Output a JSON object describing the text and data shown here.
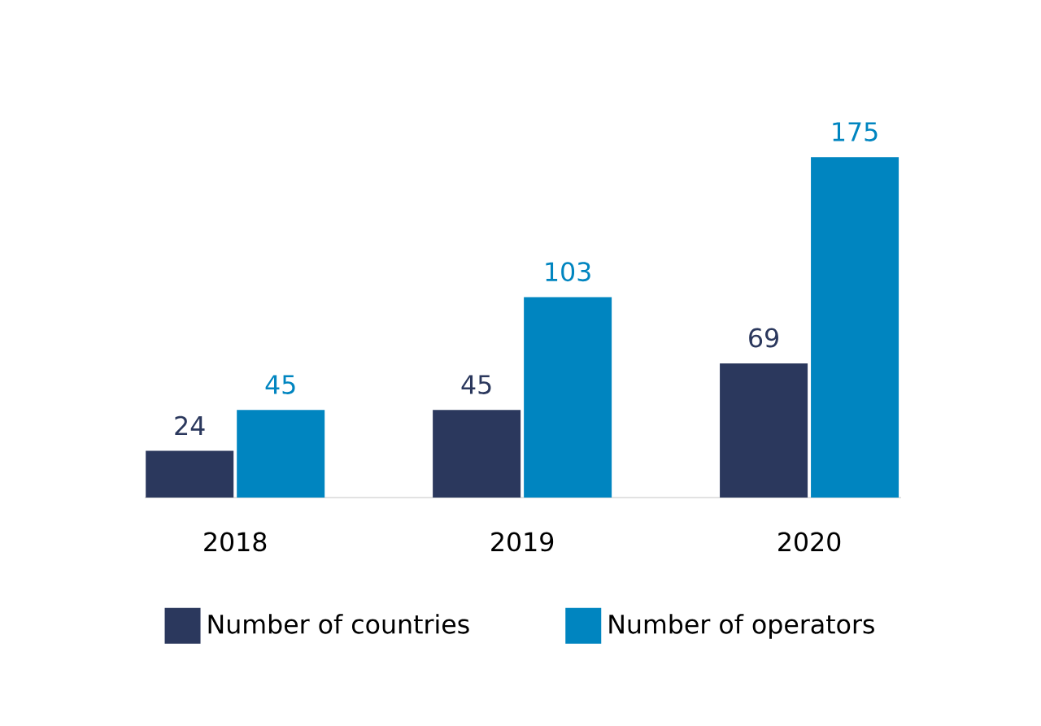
{
  "chart_data": {
    "type": "bar",
    "categories": [
      "2018",
      "2019",
      "2020"
    ],
    "series": [
      {
        "name": "Number of countries",
        "color": "#2b385d",
        "values": [
          24,
          45,
          69
        ]
      },
      {
        "name": "Number of operators",
        "color": "#0085c0",
        "values": [
          45,
          103,
          175
        ]
      }
    ],
    "data_labels": true,
    "legend": "bottom"
  }
}
